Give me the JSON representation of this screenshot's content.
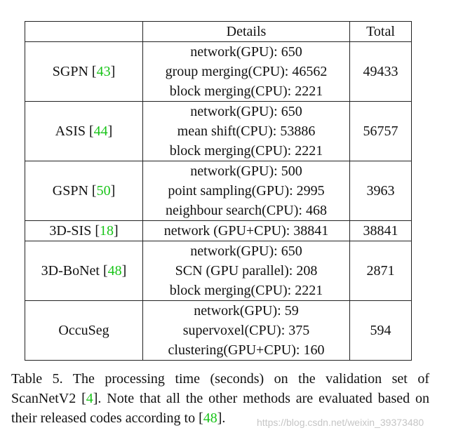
{
  "table": {
    "headers": [
      "",
      "Details",
      "Total"
    ],
    "rows": [
      {
        "method": "SGPN",
        "cite": "43",
        "details": [
          "network(GPU): 650",
          "group merging(CPU): 46562",
          "block merging(CPU): 2221"
        ],
        "total": "49433"
      },
      {
        "method": "ASIS",
        "cite": "44",
        "details": [
          "network(GPU): 650",
          "mean shift(CPU): 53886",
          "block merging(CPU): 2221"
        ],
        "total": "56757"
      },
      {
        "method": "GSPN",
        "cite": "50",
        "details": [
          "network(GPU): 500",
          "point sampling(GPU): 2995",
          "neighbour search(CPU): 468"
        ],
        "total": "3963"
      },
      {
        "method": "3D-SIS",
        "cite": "18",
        "details": [
          "network (GPU+CPU): 38841"
        ],
        "total": "38841"
      },
      {
        "method": "3D-BoNet",
        "cite": "48",
        "details": [
          "network(GPU): 650",
          "SCN (GPU parallel): 208",
          "block merging(CPU): 2221"
        ],
        "total": "2871"
      },
      {
        "method": "OccuSeg",
        "cite": "",
        "details": [
          "network(GPU): 59",
          "supervoxel(CPU): 375",
          "clustering(GPU+CPU): 160"
        ],
        "total": "594"
      }
    ]
  },
  "caption": {
    "part1": "Table 5. The processing time (seconds) on the validation set of ScanNetV2 [",
    "cite1": "4",
    "part2": "].  Note that all the other methods are evaluated based on their released codes according to [",
    "cite2": "48",
    "part3": "]."
  },
  "watermark": "https://blog.csdn.net/weixin_39373480",
  "colors": {
    "citation": "#18c418",
    "text": "#111111"
  }
}
